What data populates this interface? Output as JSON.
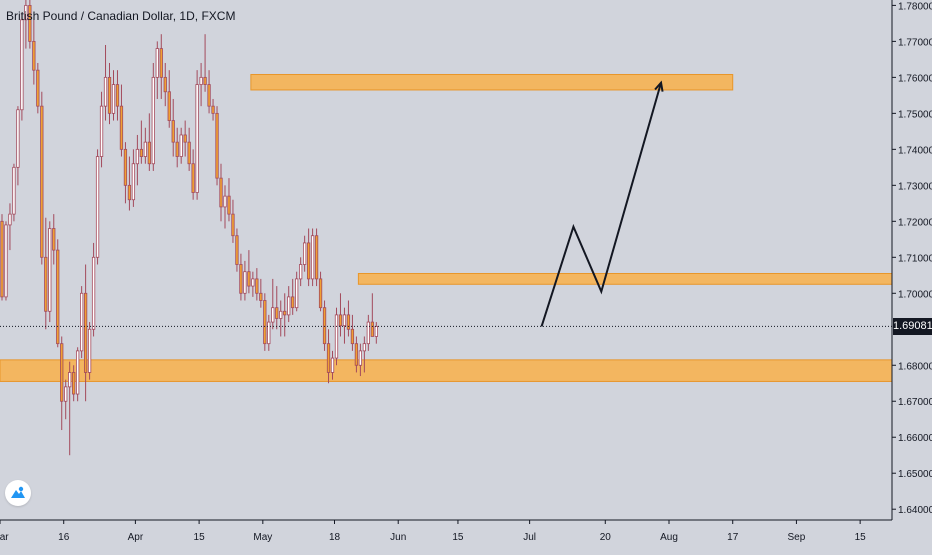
{
  "title": "British Pound / Canadian Dollar, 1D, FXCM",
  "current_price": "1.69081",
  "colors": {
    "background": "#d1d4dc",
    "up_candle": "#ffffff",
    "down_candle": "#f0a033",
    "wick": "#a34a5c",
    "zone_fill": "#f6b352",
    "zone_stroke": "#e8962a",
    "axis": "#131722",
    "projection": "#131722"
  },
  "logo_icon": "chart-logo-icon",
  "chart_data": {
    "type": "candlestick",
    "y_ticks": [
      "1.78000",
      "1.77000",
      "1.76000",
      "1.75000",
      "1.74000",
      "1.73000",
      "1.72000",
      "1.71000",
      "1.70000",
      "1.68000",
      "1.67000",
      "1.66000",
      "1.65000",
      "1.64000"
    ],
    "ylim": [
      1.637,
      1.7815
    ],
    "x_ticks": [
      "Mar",
      "16",
      "Apr",
      "15",
      "May",
      "18",
      "Jun",
      "15",
      "Jul",
      "20",
      "Aug",
      "17",
      "Sep",
      "15"
    ],
    "x_tick_index": [
      0,
      16,
      34,
      50,
      66,
      84,
      100,
      115,
      133,
      152,
      168,
      184,
      200,
      216
    ],
    "xlim": [
      0,
      224
    ],
    "last_price": 1.69081,
    "zones": [
      {
        "x0": 63,
        "x1": 184,
        "y0": 1.7565,
        "y1": 1.7608
      },
      {
        "x0": 90,
        "x1": 224,
        "y0": 1.7025,
        "y1": 1.7055
      },
      {
        "x0": 0,
        "x1": 224,
        "y0": 1.6755,
        "y1": 1.6815
      }
    ],
    "projection_path": [
      [
        136,
        1.6908
      ],
      [
        144,
        1.7185
      ],
      [
        151,
        1.7005
      ],
      [
        166,
        1.7585
      ]
    ],
    "candles": [
      [
        1.72,
        1.722,
        1.698,
        1.699
      ],
      [
        1.699,
        1.72,
        1.698,
        1.719
      ],
      [
        1.719,
        1.725,
        1.712,
        1.722
      ],
      [
        1.722,
        1.736,
        1.72,
        1.735
      ],
      [
        1.735,
        1.752,
        1.73,
        1.751
      ],
      [
        1.751,
        1.778,
        1.748,
        1.776
      ],
      [
        1.776,
        1.783,
        1.768,
        1.78
      ],
      [
        1.78,
        1.782,
        1.768,
        1.77
      ],
      [
        1.77,
        1.776,
        1.758,
        1.762
      ],
      [
        1.762,
        1.764,
        1.75,
        1.752
      ],
      [
        1.752,
        1.756,
        1.708,
        1.71
      ],
      [
        1.71,
        1.721,
        1.69,
        1.695
      ],
      [
        1.695,
        1.72,
        1.692,
        1.718
      ],
      [
        1.718,
        1.722,
        1.708,
        1.712
      ],
      [
        1.712,
        1.715,
        1.685,
        1.686
      ],
      [
        1.686,
        1.688,
        1.662,
        1.67
      ],
      [
        1.67,
        1.676,
        1.665,
        1.674
      ],
      [
        1.674,
        1.681,
        1.655,
        1.678
      ],
      [
        1.678,
        1.68,
        1.67,
        1.672
      ],
      [
        1.672,
        1.685,
        1.67,
        1.684
      ],
      [
        1.684,
        1.702,
        1.682,
        1.7
      ],
      [
        1.7,
        1.708,
        1.67,
        1.678
      ],
      [
        1.678,
        1.692,
        1.676,
        1.69
      ],
      [
        1.69,
        1.714,
        1.688,
        1.71
      ],
      [
        1.71,
        1.74,
        1.708,
        1.738
      ],
      [
        1.738,
        1.756,
        1.735,
        1.752
      ],
      [
        1.752,
        1.769,
        1.748,
        1.76
      ],
      [
        1.76,
        1.764,
        1.747,
        1.75
      ],
      [
        1.75,
        1.762,
        1.748,
        1.758
      ],
      [
        1.758,
        1.762,
        1.748,
        1.752
      ],
      [
        1.752,
        1.758,
        1.738,
        1.74
      ],
      [
        1.74,
        1.742,
        1.725,
        1.73
      ],
      [
        1.73,
        1.738,
        1.723,
        1.726
      ],
      [
        1.726,
        1.74,
        1.724,
        1.736
      ],
      [
        1.736,
        1.744,
        1.73,
        1.74
      ],
      [
        1.74,
        1.748,
        1.736,
        1.738
      ],
      [
        1.738,
        1.746,
        1.736,
        1.742
      ],
      [
        1.742,
        1.75,
        1.734,
        1.736
      ],
      [
        1.736,
        1.764,
        1.734,
        1.76
      ],
      [
        1.76,
        1.77,
        1.754,
        1.768
      ],
      [
        1.768,
        1.772,
        1.754,
        1.76
      ],
      [
        1.76,
        1.764,
        1.752,
        1.756
      ],
      [
        1.756,
        1.762,
        1.746,
        1.748
      ],
      [
        1.748,
        1.754,
        1.738,
        1.742
      ],
      [
        1.742,
        1.746,
        1.735,
        1.738
      ],
      [
        1.738,
        1.746,
        1.736,
        1.744
      ],
      [
        1.744,
        1.748,
        1.738,
        1.742
      ],
      [
        1.742,
        1.746,
        1.734,
        1.736
      ],
      [
        1.736,
        1.74,
        1.726,
        1.728
      ],
      [
        1.728,
        1.762,
        1.726,
        1.758
      ],
      [
        1.758,
        1.764,
        1.752,
        1.76
      ],
      [
        1.76,
        1.772,
        1.756,
        1.758
      ],
      [
        1.758,
        1.762,
        1.75,
        1.752
      ],
      [
        1.752,
        1.754,
        1.748,
        1.75
      ],
      [
        1.75,
        1.752,
        1.73,
        1.732
      ],
      [
        1.732,
        1.736,
        1.72,
        1.724
      ],
      [
        1.724,
        1.73,
        1.718,
        1.727
      ],
      [
        1.727,
        1.732,
        1.72,
        1.722
      ],
      [
        1.722,
        1.726,
        1.714,
        1.716
      ],
      [
        1.716,
        1.718,
        1.706,
        1.708
      ],
      [
        1.708,
        1.711,
        1.698,
        1.7
      ],
      [
        1.7,
        1.709,
        1.698,
        1.706
      ],
      [
        1.706,
        1.712,
        1.7,
        1.702
      ],
      [
        1.702,
        1.706,
        1.699,
        1.704
      ],
      [
        1.704,
        1.707,
        1.698,
        1.7
      ],
      [
        1.7,
        1.704,
        1.696,
        1.698
      ],
      [
        1.698,
        1.7,
        1.684,
        1.686
      ],
      [
        1.686,
        1.694,
        1.684,
        1.692
      ],
      [
        1.692,
        1.704,
        1.69,
        1.696
      ],
      [
        1.696,
        1.702,
        1.69,
        1.693
      ],
      [
        1.693,
        1.698,
        1.688,
        1.695
      ],
      [
        1.695,
        1.7,
        1.688,
        1.694
      ],
      [
        1.694,
        1.702,
        1.692,
        1.699
      ],
      [
        1.699,
        1.704,
        1.694,
        1.696
      ],
      [
        1.696,
        1.706,
        1.695,
        1.704
      ],
      [
        1.704,
        1.71,
        1.702,
        1.708
      ],
      [
        1.708,
        1.716,
        1.706,
        1.714
      ],
      [
        1.714,
        1.718,
        1.702,
        1.704
      ],
      [
        1.704,
        1.718,
        1.702,
        1.716
      ],
      [
        1.716,
        1.718,
        1.702,
        1.704
      ],
      [
        1.704,
        1.706,
        1.695,
        1.696
      ],
      [
        1.696,
        1.698,
        1.684,
        1.686
      ],
      [
        1.686,
        1.69,
        1.675,
        1.678
      ],
      [
        1.678,
        1.684,
        1.676,
        1.682
      ],
      [
        1.682,
        1.696,
        1.68,
        1.694
      ],
      [
        1.694,
        1.7,
        1.688,
        1.691
      ],
      [
        1.691,
        1.696,
        1.686,
        1.694
      ],
      [
        1.694,
        1.698,
        1.688,
        1.69
      ],
      [
        1.69,
        1.694,
        1.684,
        1.686
      ],
      [
        1.686,
        1.688,
        1.678,
        1.68
      ],
      [
        1.68,
        1.686,
        1.677,
        1.684
      ],
      [
        1.684,
        1.688,
        1.678,
        1.686
      ],
      [
        1.686,
        1.694,
        1.684,
        1.692
      ],
      [
        1.692,
        1.7,
        1.688,
        1.688
      ],
      [
        1.688,
        1.692,
        1.686,
        1.6908
      ]
    ]
  }
}
